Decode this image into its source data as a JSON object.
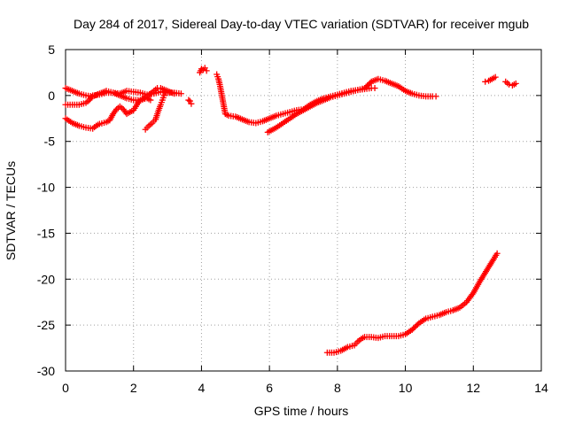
{
  "chart_data": {
    "type": "scatter",
    "title": "Day 284 of 2017, Sidereal Day-to-day VTEC variation (SDTVAR) for receiver mgub",
    "xlabel": "GPS time / hours",
    "ylabel": "SDTVAR / TECUs",
    "xlim": [
      0,
      14
    ],
    "ylim": [
      -30,
      5
    ],
    "xticks": [
      0,
      2,
      4,
      6,
      8,
      10,
      12,
      14
    ],
    "yticks": [
      5,
      0,
      -5,
      -10,
      -15,
      -20,
      -25,
      -30
    ],
    "grid": true,
    "legend": "none",
    "marker": "plus",
    "color": "#ff0000",
    "series": [
      {
        "points": [
          [
            0.0,
            0.8
          ],
          [
            0.2,
            0.5
          ],
          [
            0.4,
            0.2
          ],
          [
            0.6,
            0.0
          ],
          [
            0.8,
            -0.1
          ],
          [
            1.0,
            0.2
          ],
          [
            1.2,
            0.5
          ],
          [
            1.4,
            0.3
          ],
          [
            1.6,
            0.2
          ],
          [
            1.8,
            0.5
          ],
          [
            2.0,
            0.4
          ],
          [
            2.2,
            0.3
          ],
          [
            2.4,
            0.1
          ],
          [
            2.6,
            0.2
          ],
          [
            2.8,
            0.4
          ],
          [
            3.0,
            0.3
          ],
          [
            3.2,
            0.3
          ],
          [
            3.4,
            0.2
          ]
        ]
      },
      {
        "points": [
          [
            0.0,
            -1.0
          ],
          [
            0.2,
            -1.0
          ],
          [
            0.4,
            -1.0
          ],
          [
            0.6,
            -0.8
          ],
          [
            0.7,
            -0.5
          ],
          [
            0.8,
            0.0
          ],
          [
            1.0,
            0.1
          ],
          [
            1.2,
            0.3
          ],
          [
            1.4,
            0.3
          ],
          [
            1.6,
            0.0
          ],
          [
            1.8,
            -0.3
          ],
          [
            2.0,
            -0.5
          ],
          [
            2.2,
            -0.5
          ],
          [
            2.4,
            -0.1
          ],
          [
            2.6,
            0.5
          ],
          [
            2.7,
            0.8
          ],
          [
            2.8,
            0.8
          ],
          [
            3.0,
            0.5
          ],
          [
            3.2,
            0.2
          ]
        ]
      },
      {
        "points": [
          [
            0.0,
            -2.5
          ],
          [
            0.2,
            -3.0
          ],
          [
            0.4,
            -3.3
          ],
          [
            0.6,
            -3.5
          ],
          [
            0.8,
            -3.6
          ],
          [
            0.9,
            -3.3
          ],
          [
            1.0,
            -3.1
          ],
          [
            1.2,
            -2.9
          ],
          [
            1.3,
            -2.7
          ],
          [
            1.4,
            -2.0
          ],
          [
            1.5,
            -1.5
          ],
          [
            1.6,
            -1.2
          ],
          [
            1.7,
            -1.5
          ],
          [
            1.8,
            -2.0
          ],
          [
            2.0,
            -1.6
          ],
          [
            2.1,
            -1.0
          ],
          [
            2.2,
            -0.5
          ],
          [
            2.4,
            -0.3
          ],
          [
            2.5,
            -0.5
          ]
        ]
      },
      {
        "points": [
          [
            2.35,
            -3.7
          ],
          [
            2.45,
            -3.3
          ],
          [
            2.55,
            -3.0
          ],
          [
            2.65,
            -2.6
          ],
          [
            2.72,
            -1.8
          ],
          [
            2.8,
            -1.0
          ],
          [
            2.85,
            -0.5
          ],
          [
            2.9,
            0.0
          ],
          [
            2.95,
            0.3
          ]
        ]
      },
      {
        "points": [
          [
            3.62,
            -0.5
          ],
          [
            3.66,
            -0.6
          ],
          [
            3.7,
            -0.9
          ]
        ]
      },
      {
        "points": [
          [
            3.95,
            2.5
          ],
          [
            4.0,
            2.9
          ],
          [
            4.05,
            2.8
          ],
          [
            4.1,
            3.0
          ],
          [
            4.15,
            2.7
          ]
        ]
      },
      {
        "points": [
          [
            4.45,
            2.3
          ],
          [
            4.5,
            1.8
          ],
          [
            4.55,
            1.0
          ],
          [
            4.6,
            0.0
          ],
          [
            4.65,
            -1.0
          ],
          [
            4.7,
            -2.0
          ],
          [
            4.8,
            -2.2
          ],
          [
            5.0,
            -2.3
          ],
          [
            5.2,
            -2.6
          ],
          [
            5.4,
            -2.9
          ],
          [
            5.6,
            -3.0
          ],
          [
            5.8,
            -2.8
          ],
          [
            6.0,
            -2.5
          ],
          [
            6.2,
            -2.2
          ],
          [
            6.4,
            -2.0
          ],
          [
            6.6,
            -1.8
          ],
          [
            6.8,
            -1.6
          ],
          [
            7.0,
            -1.5
          ],
          [
            7.2,
            -1.0
          ],
          [
            7.4,
            -0.6
          ],
          [
            7.6,
            -0.3
          ],
          [
            7.8,
            -0.1
          ],
          [
            8.0,
            0.1
          ],
          [
            8.2,
            0.3
          ],
          [
            8.4,
            0.5
          ],
          [
            8.6,
            0.6
          ],
          [
            8.8,
            0.7
          ],
          [
            9.0,
            0.8
          ],
          [
            9.1,
            0.8
          ]
        ]
      },
      {
        "points": [
          [
            5.95,
            -4.0
          ],
          [
            6.2,
            -3.5
          ],
          [
            6.4,
            -3.0
          ],
          [
            6.6,
            -2.5
          ],
          [
            6.8,
            -2.0
          ],
          [
            7.0,
            -1.6
          ],
          [
            7.2,
            -1.2
          ],
          [
            7.4,
            -0.8
          ],
          [
            7.6,
            -0.5
          ],
          [
            7.8,
            -0.2
          ],
          [
            8.0,
            0.0
          ],
          [
            8.2,
            0.2
          ],
          [
            8.4,
            0.4
          ],
          [
            8.6,
            0.6
          ],
          [
            8.8,
            0.8
          ],
          [
            9.0,
            1.5
          ],
          [
            9.2,
            1.8
          ],
          [
            9.4,
            1.6
          ],
          [
            9.6,
            1.3
          ],
          [
            9.8,
            1.0
          ],
          [
            10.0,
            0.5
          ],
          [
            10.2,
            0.2
          ],
          [
            10.4,
            0.0
          ],
          [
            10.6,
            -0.1
          ],
          [
            10.8,
            -0.1
          ],
          [
            10.9,
            -0.1
          ]
        ]
      },
      {
        "points": [
          [
            7.7,
            -28.0
          ],
          [
            7.9,
            -28.0
          ],
          [
            8.1,
            -27.8
          ],
          [
            8.3,
            -27.4
          ],
          [
            8.5,
            -27.2
          ],
          [
            8.6,
            -26.8
          ],
          [
            8.7,
            -26.5
          ],
          [
            8.8,
            -26.3
          ],
          [
            9.0,
            -26.3
          ],
          [
            9.2,
            -26.4
          ],
          [
            9.4,
            -26.2
          ],
          [
            9.6,
            -26.2
          ],
          [
            9.8,
            -26.2
          ],
          [
            10.0,
            -26.0
          ],
          [
            10.2,
            -25.5
          ],
          [
            10.4,
            -24.8
          ],
          [
            10.6,
            -24.3
          ],
          [
            10.8,
            -24.1
          ],
          [
            11.0,
            -23.9
          ],
          [
            11.2,
            -23.6
          ],
          [
            11.4,
            -23.4
          ],
          [
            11.6,
            -23.1
          ],
          [
            11.8,
            -22.5
          ],
          [
            12.0,
            -21.5
          ],
          [
            12.2,
            -20.2
          ],
          [
            12.4,
            -19.0
          ],
          [
            12.6,
            -17.8
          ],
          [
            12.7,
            -17.2
          ]
        ]
      },
      {
        "points": [
          [
            12.35,
            1.5
          ],
          [
            12.45,
            1.6
          ],
          [
            12.55,
            1.8
          ],
          [
            12.65,
            2.0
          ]
        ]
      },
      {
        "points": [
          [
            12.95,
            1.5
          ],
          [
            13.05,
            1.2
          ],
          [
            13.15,
            1.1
          ],
          [
            13.25,
            1.3
          ]
        ]
      }
    ]
  }
}
